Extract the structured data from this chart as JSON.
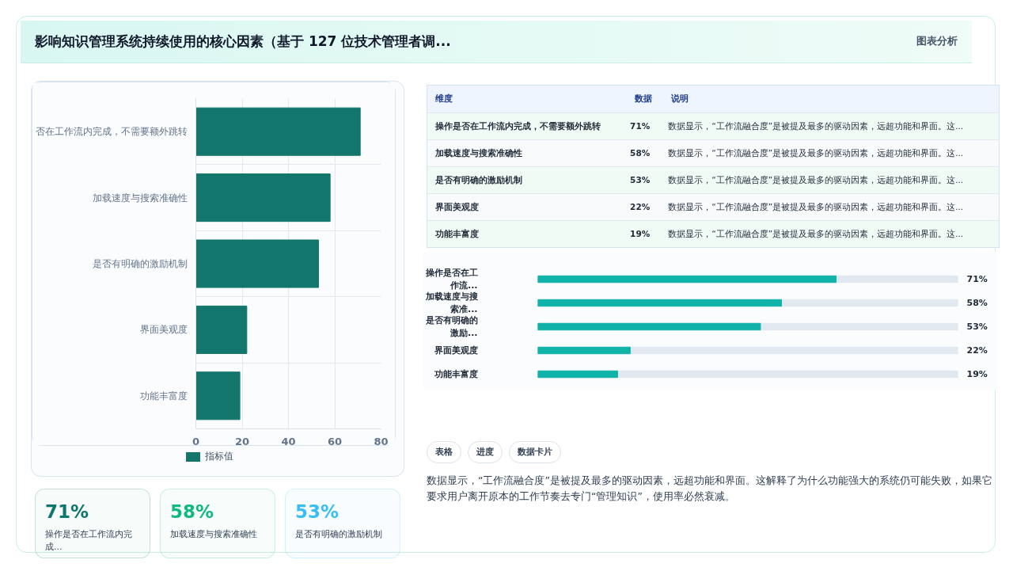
{
  "chart_data": [
    {
      "type": "bar",
      "orientation": "horizontal",
      "title": "影响知识管理系统持续使用的核心因素（基于 127 位技术管理者调...",
      "annotations": [
        "图表分析"
      ],
      "categories": [
        "否在工作流内完成，不需要额外跳转",
        "加载速度与搜索准确性",
        "是否有明确的激励机制",
        "界面美观度",
        "功能丰富度"
      ],
      "series": [
        {
          "name": "指标值",
          "color": "#13766d",
          "values": [
            71,
            58,
            53,
            22,
            19
          ]
        }
      ],
      "xlim": [
        0,
        80
      ],
      "xticks": [
        0,
        20,
        40,
        60,
        80
      ],
      "grid": true,
      "legend": "bottom"
    },
    {
      "type": "other",
      "categories": [
        "操作是否在工作流内完成，不需要额外跳转",
        "加载速度与搜索准确性",
        "是否有明确的激励机制",
        "界面美观度",
        "功能丰富度"
      ],
      "value_labels": [
        "71%",
        "58%",
        "53%",
        "22%",
        "19%"
      ],
      "annotations": [
        "维度",
        "数据",
        "说明",
        "数据显示，“工作流融合度”是被提及最多的驱动因素，远超功能和界面。这...",
        "数据显示，“工作流融合度”是被提及最多的驱动因素，远超功能和界面。这...",
        "数据显示，“工作流融合度”是被提及最多的驱动因素，远超功能和界面。这...",
        "数据显示，“工作流融合度”是被提及最多的驱动因素，远超功能和界面。这...",
        "数据显示，“工作流融合度”是被提及最多的驱动因素，远超功能和界面。这..."
      ]
    },
    {
      "type": "bar",
      "orientation": "horizontal",
      "categories": [
        "操作是否在工作流...",
        "加载速度与搜索准...",
        "是否有明确的激励...",
        "界面美观度",
        "功能丰富度"
      ],
      "values": [
        71,
        58,
        53,
        22,
        19
      ],
      "value_labels": [
        "71%",
        "58%",
        "53%",
        "22%",
        "19%"
      ],
      "color": "#10b3a8",
      "xlim": [
        0,
        100
      ],
      "tick_labels": "y"
    },
    {
      "type": "other",
      "categories": [
        "操作是否在工作流内完成...",
        "加载速度与搜索准确性",
        "是否有明确的激励机制"
      ],
      "value_labels": [
        "71%",
        "58%",
        "53%"
      ],
      "colors": [
        "#0f766e",
        "#10b981",
        "#38bdf8"
      ]
    },
    {
      "type": "other",
      "annotations": [
        "表格",
        "进度",
        "数据卡片",
        "数据显示，“工作流融合度”是被提及最多的驱动因素，远超功能和界面。这解释了为什么功能强大的系统仍可能失败，如果它要求用户离开原本的工作节奏去专门“管理知识”，使用率必然衰减。"
      ]
    }
  ]
}
